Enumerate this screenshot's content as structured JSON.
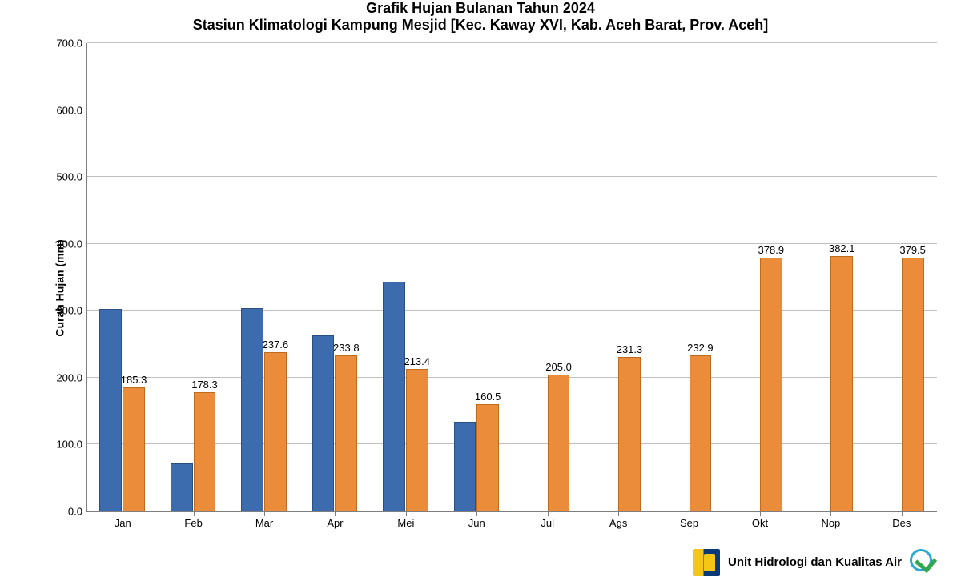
{
  "title": {
    "line1": "Grafik Hujan Bulanan Tahun 2024",
    "line2": "Stasiun Klimatologi Kampung Mesjid [Kec. Kaway XVI, Kab. Aceh Barat, Prov. Aceh]",
    "fontsize": 18,
    "fontweight": "bold",
    "color": "#000000"
  },
  "chart": {
    "type": "bar",
    "ylabel": "Curah Hujan (mm)",
    "label_fontsize": 14,
    "ylim": [
      0,
      700
    ],
    "ytick_step": 100,
    "ytick_decimals": 1,
    "grid_color": "#bfbfbf",
    "axis_color": "#7f7f7f",
    "background_color": "#ffffff",
    "tick_fontsize": 13,
    "categories": [
      "Jan",
      "Feb",
      "Mar",
      "Apr",
      "Mei",
      "Jun",
      "Jul",
      "Ags",
      "Sep",
      "Okt",
      "Nop",
      "Des"
    ],
    "series": [
      {
        "name": "series_a",
        "color": "#3c6cae",
        "border_color": "#2a4f82",
        "values": [
          303,
          72,
          304,
          263,
          343,
          134,
          null,
          null,
          null,
          null,
          null,
          null
        ],
        "show_data_labels": false
      },
      {
        "name": "series_b",
        "color": "#eb8c3a",
        "border_color": "#c06a1e",
        "values": [
          185.3,
          178.3,
          237.6,
          233.8,
          213.4,
          160.5,
          205.0,
          231.3,
          232.9,
          378.9,
          382.1,
          379.5
        ],
        "show_data_labels": true
      }
    ],
    "bar_gap_ratio": 0.35,
    "datalabel_fontsize": 13,
    "datalabel_color": "#000000"
  },
  "footer": {
    "text": "Unit Hidrologi dan Kualitas Air",
    "org_logo_colors": {
      "left": "#f5c518",
      "right": "#0a3a7a"
    },
    "badge_colors": {
      "ring": "#2aa9d2",
      "check": "#2fa84f"
    }
  }
}
